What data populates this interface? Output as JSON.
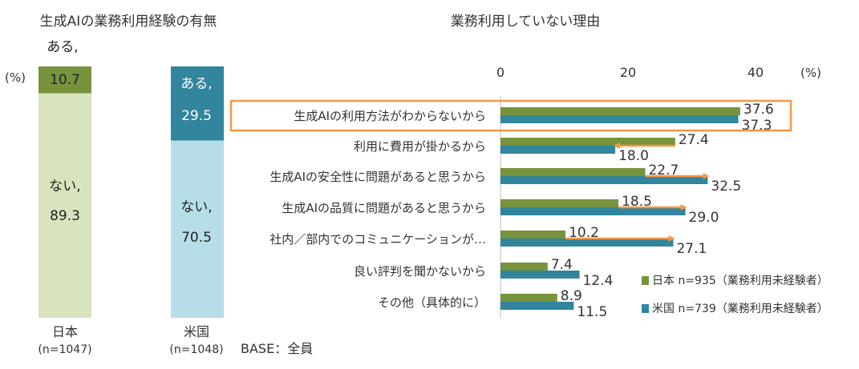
{
  "colors": {
    "japan": "#77933C",
    "japan_light": "#D7E4BD",
    "usa": "#31859C",
    "usa_light": "#B7DDE8",
    "arrow": "#F79646",
    "highlight": "#F79646",
    "text": "#333333",
    "axis": "#BFBFBF"
  },
  "chart_data": [
    {
      "type": "bar",
      "subtype": "stacked-100",
      "title": "生成AIの業務利用経験の有無",
      "unit_label": "(%)",
      "categories": [
        {
          "name": "日本",
          "n": "(n=1047)"
        },
        {
          "name": "米国",
          "n": "(n=1048)"
        }
      ],
      "series": [
        {
          "name": "ある",
          "values": [
            10.7,
            29.5
          ]
        },
        {
          "name": "ない",
          "values": [
            89.3,
            70.5
          ]
        }
      ],
      "segment_labels": {
        "yes_jp_top": "ある,",
        "yes_jp_value": "10.7",
        "yes_us_name": "ある,",
        "yes_us_value": "29.5",
        "no_jp_name": "ない,",
        "no_jp_value": "89.3",
        "no_us_name": "ない,",
        "no_us_value": "70.5"
      },
      "base_note": "BASE：全員"
    },
    {
      "type": "bar",
      "subtype": "horizontal-grouped",
      "title": "業務利用していない理由",
      "unit_label": "(%)",
      "x_ticks": [
        0,
        20,
        40
      ],
      "xlim": [
        0,
        48
      ],
      "categories": [
        "生成AIの利用方法がわからないから",
        "利用に費用が掛かるから",
        "生成AIの安全性に問題があると思うから",
        "生成AIの品質に問題があると思うから",
        "社内／部内でのコミュニケーションが…",
        "良い評判を聞かないから",
        "その他（具体的に）"
      ],
      "series": [
        {
          "name": "日本",
          "legend": "日本 n=935（業務利用未経験者）",
          "values": [
            37.6,
            27.4,
            22.7,
            18.5,
            10.2,
            7.4,
            8.9
          ]
        },
        {
          "name": "米国",
          "legend": "米国 n=739（業務利用未経験者）",
          "values": [
            37.3,
            18.0,
            32.5,
            29.0,
            27.1,
            12.4,
            11.5
          ]
        }
      ],
      "value_labels": {
        "jp": [
          "37.6",
          "27.4",
          "22.7",
          "18.5",
          "10.2",
          "7.4",
          "8.9"
        ],
        "us": [
          "37.3",
          "18.0",
          "32.5",
          "29.0",
          "27.1",
          "12.4",
          "11.5"
        ]
      },
      "arrows": [
        1,
        2,
        3,
        4
      ],
      "highlight_row": 0
    }
  ]
}
